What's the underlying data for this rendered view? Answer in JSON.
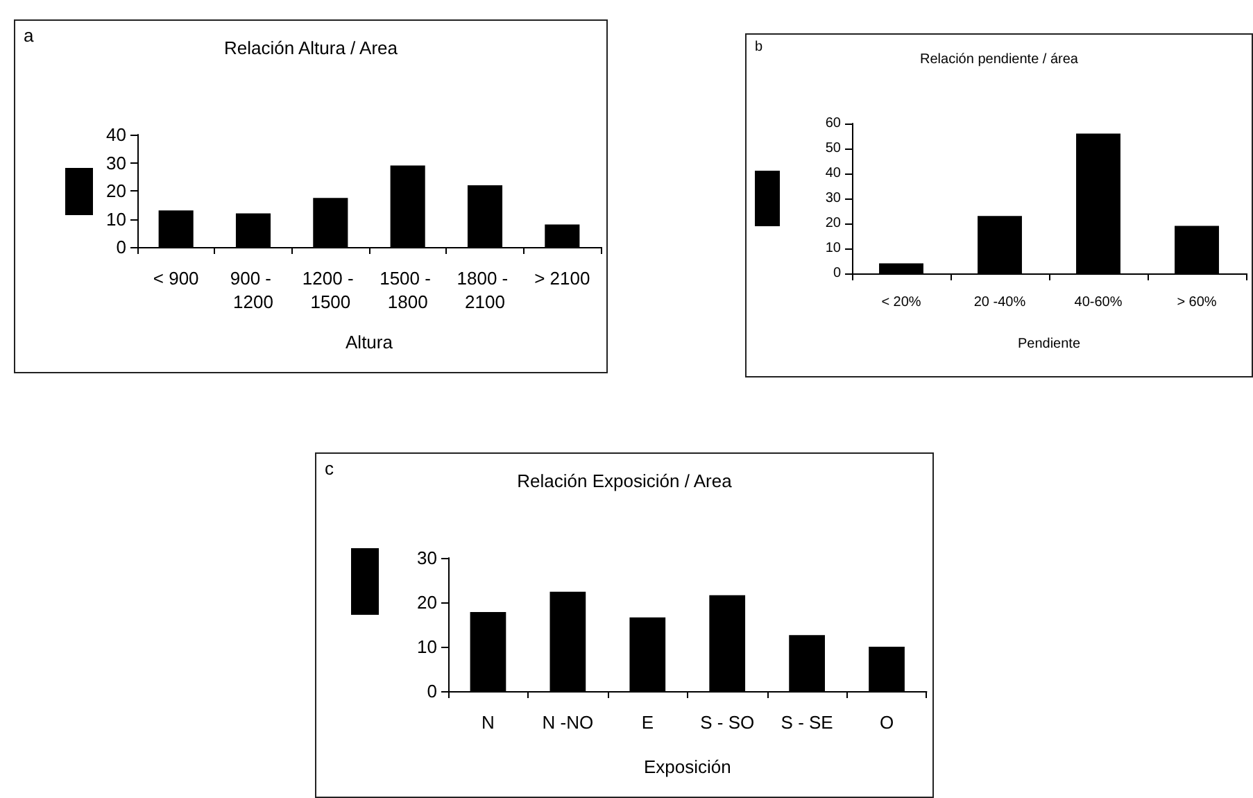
{
  "chart_data": [
    {
      "type": "bar",
      "title": "Relación Altura / Area",
      "xlabel": "Altura",
      "annotations": [
        "a"
      ],
      "categories": [
        "< 900",
        "900 - 1200",
        "1200 - 1500",
        "1500 - 1800",
        "1800 - 2100",
        "> 2100"
      ],
      "values": [
        13,
        12,
        17.5,
        29,
        22,
        8
      ],
      "color": "#000000",
      "ylim": [
        0,
        40
      ],
      "yticks": [
        0,
        10,
        20,
        30,
        40
      ]
    },
    {
      "type": "bar",
      "title": "Relación pendiente / área",
      "xlabel": "Pendiente",
      "annotations": [
        "b"
      ],
      "categories": [
        "< 20%",
        "20 -40%",
        "40-60%",
        "> 60%"
      ],
      "values": [
        4,
        23,
        56,
        19
      ],
      "color": "#000000",
      "ylim": [
        0,
        60
      ],
      "yticks": [
        0,
        10,
        20,
        30,
        40,
        50,
        60
      ]
    },
    {
      "type": "bar",
      "title": "Relación Exposición / Area",
      "xlabel": "Exposición",
      "annotations": [
        "c"
      ],
      "categories": [
        "N",
        "N -NO",
        "E",
        "S - SO",
        "S - SE",
        "O"
      ],
      "values": [
        17.8,
        22.4,
        16.6,
        21.6,
        12.6,
        10
      ],
      "color": "#000000",
      "ylim": [
        0,
        30
      ],
      "yticks": [
        0,
        10,
        20,
        30
      ]
    }
  ]
}
